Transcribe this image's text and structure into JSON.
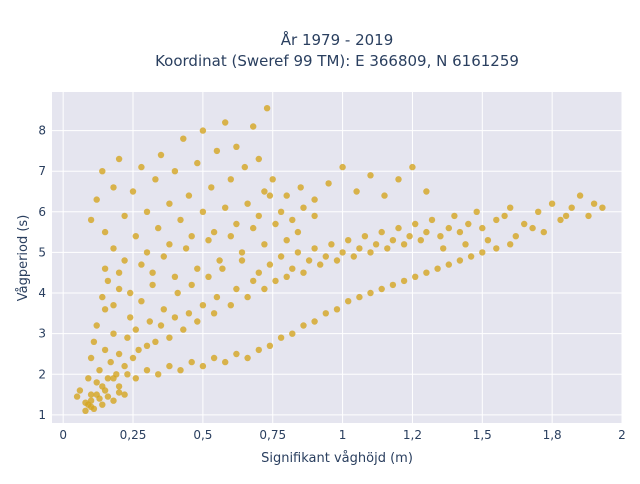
{
  "chart_data": {
    "type": "scatter",
    "title": [
      "År 1979 - 2019",
      "Koordinat (Sweref 99 TM): E 366809, N 6161259"
    ],
    "xlabel": "Signifikant våghöjd (m)",
    "ylabel": "Vågperiod (s)",
    "xlim": [
      -0.04,
      2.0
    ],
    "ylim": [
      0.8,
      8.95
    ],
    "x_ticks": [
      {
        "value": 0,
        "label": "0"
      },
      {
        "value": 0.25,
        "label": "0,25"
      },
      {
        "value": 0.5,
        "label": "0,5"
      },
      {
        "value": 0.75,
        "label": "0,75"
      },
      {
        "value": 1.0,
        "label": "1"
      },
      {
        "value": 1.25,
        "label": "1,2"
      },
      {
        "value": 1.5,
        "label": "1,5"
      },
      {
        "value": 1.75,
        "label": "1,8"
      },
      {
        "value": 2.0,
        "label": "2"
      }
    ],
    "y_ticks": [
      {
        "value": 1,
        "label": "1"
      },
      {
        "value": 2,
        "label": "2"
      },
      {
        "value": 3,
        "label": "3"
      },
      {
        "value": 4,
        "label": "4"
      },
      {
        "value": 5,
        "label": "5"
      },
      {
        "value": 6,
        "label": "6"
      },
      {
        "value": 7,
        "label": "7"
      },
      {
        "value": 8,
        "label": "8"
      }
    ],
    "grid": true,
    "colors": {
      "marker": "#d4a520",
      "plot_bg": "#e5e5ef",
      "grid": "#ffffff"
    },
    "series": [
      {
        "values": [
          [
            0.05,
            1.45
          ],
          [
            0.06,
            1.6
          ],
          [
            0.08,
            1.3
          ],
          [
            0.09,
            1.9
          ],
          [
            0.1,
            1.2
          ],
          [
            0.1,
            2.4
          ],
          [
            0.11,
            2.8
          ],
          [
            0.12,
            1.5
          ],
          [
            0.12,
            3.2
          ],
          [
            0.13,
            2.1
          ],
          [
            0.14,
            1.7
          ],
          [
            0.15,
            2.6
          ],
          [
            0.15,
            3.6
          ],
          [
            0.16,
            1.9
          ],
          [
            0.17,
            2.3
          ],
          [
            0.18,
            3.0
          ],
          [
            0.19,
            2.0
          ],
          [
            0.2,
            2.5
          ],
          [
            0.2,
            4.1
          ],
          [
            0.22,
            2.2
          ],
          [
            0.23,
            2.9
          ],
          [
            0.24,
            3.4
          ],
          [
            0.25,
            2.4
          ],
          [
            0.26,
            3.1
          ],
          [
            0.27,
            2.6
          ],
          [
            0.28,
            3.8
          ],
          [
            0.3,
            2.7
          ],
          [
            0.31,
            3.3
          ],
          [
            0.32,
            4.5
          ],
          [
            0.33,
            2.8
          ],
          [
            0.35,
            3.2
          ],
          [
            0.36,
            3.6
          ],
          [
            0.38,
            2.9
          ],
          [
            0.4,
            3.4
          ],
          [
            0.41,
            4.0
          ],
          [
            0.43,
            3.1
          ],
          [
            0.45,
            3.5
          ],
          [
            0.46,
            4.2
          ],
          [
            0.48,
            3.3
          ],
          [
            0.5,
            3.7
          ],
          [
            0.52,
            4.4
          ],
          [
            0.54,
            3.5
          ],
          [
            0.55,
            3.9
          ],
          [
            0.57,
            4.6
          ],
          [
            0.6,
            3.7
          ],
          [
            0.62,
            4.1
          ],
          [
            0.64,
            4.8
          ],
          [
            0.66,
            3.9
          ],
          [
            0.68,
            4.3
          ],
          [
            0.7,
            4.5
          ],
          [
            0.72,
            4.1
          ],
          [
            0.74,
            4.7
          ],
          [
            0.76,
            4.3
          ],
          [
            0.78,
            4.9
          ],
          [
            0.8,
            4.4
          ],
          [
            0.82,
            4.6
          ],
          [
            0.84,
            5.0
          ],
          [
            0.86,
            4.5
          ],
          [
            0.88,
            4.8
          ],
          [
            0.9,
            5.1
          ],
          [
            0.92,
            4.7
          ],
          [
            0.94,
            4.9
          ],
          [
            0.96,
            5.2
          ],
          [
            0.98,
            4.8
          ],
          [
            1.0,
            5.0
          ],
          [
            1.02,
            5.3
          ],
          [
            1.04,
            4.9
          ],
          [
            1.06,
            5.1
          ],
          [
            1.08,
            5.4
          ],
          [
            1.1,
            5.0
          ],
          [
            1.12,
            5.2
          ],
          [
            1.14,
            5.5
          ],
          [
            1.16,
            5.1
          ],
          [
            1.18,
            5.3
          ],
          [
            1.2,
            5.6
          ],
          [
            1.22,
            5.2
          ],
          [
            1.24,
            5.4
          ],
          [
            1.26,
            5.7
          ],
          [
            1.28,
            5.3
          ],
          [
            1.3,
            5.5
          ],
          [
            1.32,
            5.8
          ],
          [
            1.35,
            5.4
          ],
          [
            1.38,
            5.6
          ],
          [
            1.4,
            5.9
          ],
          [
            1.42,
            5.5
          ],
          [
            1.45,
            5.7
          ],
          [
            1.48,
            6.0
          ],
          [
            1.5,
            5.6
          ],
          [
            1.55,
            5.8
          ],
          [
            1.6,
            6.1
          ],
          [
            1.65,
            5.7
          ],
          [
            1.7,
            6.0
          ],
          [
            1.75,
            6.2
          ],
          [
            1.8,
            5.9
          ],
          [
            1.85,
            6.4
          ],
          [
            1.9,
            6.2
          ],
          [
            1.93,
            6.1
          ],
          [
            0.1,
            5.8
          ],
          [
            0.12,
            6.3
          ],
          [
            0.14,
            7.0
          ],
          [
            0.15,
            5.5
          ],
          [
            0.18,
            6.6
          ],
          [
            0.2,
            7.3
          ],
          [
            0.22,
            5.9
          ],
          [
            0.25,
            6.5
          ],
          [
            0.28,
            7.1
          ],
          [
            0.3,
            6.0
          ],
          [
            0.33,
            6.8
          ],
          [
            0.35,
            7.4
          ],
          [
            0.38,
            6.2
          ],
          [
            0.4,
            7.0
          ],
          [
            0.43,
            7.8
          ],
          [
            0.45,
            6.4
          ],
          [
            0.48,
            7.2
          ],
          [
            0.5,
            8.0
          ],
          [
            0.53,
            6.6
          ],
          [
            0.55,
            7.5
          ],
          [
            0.58,
            8.2
          ],
          [
            0.6,
            6.8
          ],
          [
            0.62,
            7.6
          ],
          [
            0.65,
            7.1
          ],
          [
            0.68,
            8.1
          ],
          [
            0.7,
            7.3
          ],
          [
            0.72,
            6.5
          ],
          [
            0.73,
            8.55
          ],
          [
            0.75,
            6.8
          ],
          [
            0.8,
            6.4
          ],
          [
            0.85,
            6.6
          ],
          [
            0.9,
            6.3
          ],
          [
            0.95,
            6.7
          ],
          [
            1.0,
            7.1
          ],
          [
            1.05,
            6.5
          ],
          [
            1.1,
            6.9
          ],
          [
            1.15,
            6.4
          ],
          [
            1.2,
            6.8
          ],
          [
            1.25,
            7.1
          ],
          [
            1.3,
            6.5
          ],
          [
            0.15,
            4.6
          ],
          [
            0.18,
            5.1
          ],
          [
            0.22,
            4.8
          ],
          [
            0.26,
            5.4
          ],
          [
            0.3,
            5.0
          ],
          [
            0.34,
            5.6
          ],
          [
            0.38,
            5.2
          ],
          [
            0.42,
            5.8
          ],
          [
            0.46,
            5.4
          ],
          [
            0.5,
            6.0
          ],
          [
            0.54,
            5.5
          ],
          [
            0.58,
            6.1
          ],
          [
            0.62,
            5.7
          ],
          [
            0.66,
            6.2
          ],
          [
            0.7,
            5.9
          ],
          [
            0.74,
            6.4
          ],
          [
            0.78,
            6.0
          ],
          [
            0.82,
            5.8
          ],
          [
            0.86,
            6.1
          ],
          [
            0.9,
            5.9
          ],
          [
            0.1,
            1.5
          ],
          [
            0.12,
            1.8
          ],
          [
            0.15,
            1.6
          ],
          [
            0.18,
            1.9
          ],
          [
            0.2,
            1.7
          ],
          [
            0.23,
            2.0
          ],
          [
            0.26,
            1.9
          ],
          [
            0.3,
            2.1
          ],
          [
            0.34,
            2.0
          ],
          [
            0.38,
            2.2
          ],
          [
            0.42,
            2.1
          ],
          [
            0.46,
            2.3
          ],
          [
            0.5,
            2.2
          ],
          [
            0.54,
            2.4
          ],
          [
            0.58,
            2.3
          ],
          [
            0.62,
            2.5
          ],
          [
            0.66,
            2.4
          ],
          [
            0.7,
            2.6
          ],
          [
            0.74,
            2.7
          ],
          [
            0.78,
            2.9
          ],
          [
            0.82,
            3.0
          ],
          [
            0.86,
            3.2
          ],
          [
            0.9,
            3.3
          ],
          [
            0.94,
            3.5
          ],
          [
            0.98,
            3.6
          ],
          [
            1.02,
            3.8
          ],
          [
            1.06,
            3.9
          ],
          [
            1.1,
            4.0
          ],
          [
            1.14,
            4.1
          ],
          [
            1.18,
            4.2
          ],
          [
            1.22,
            4.3
          ],
          [
            1.26,
            4.4
          ],
          [
            1.3,
            4.5
          ],
          [
            1.34,
            4.6
          ],
          [
            1.38,
            4.7
          ],
          [
            1.42,
            4.8
          ],
          [
            1.46,
            4.9
          ],
          [
            1.5,
            5.0
          ],
          [
            1.55,
            5.1
          ],
          [
            1.6,
            5.2
          ],
          [
            0.08,
            1.1
          ],
          [
            0.09,
            1.25
          ],
          [
            0.1,
            1.35
          ],
          [
            0.11,
            1.15
          ],
          [
            0.13,
            1.4
          ],
          [
            0.14,
            1.25
          ],
          [
            0.16,
            1.45
          ],
          [
            0.18,
            1.35
          ],
          [
            0.2,
            1.55
          ],
          [
            0.22,
            1.5
          ],
          [
            0.14,
            3.9
          ],
          [
            0.16,
            4.3
          ],
          [
            0.18,
            3.7
          ],
          [
            0.2,
            4.5
          ],
          [
            0.24,
            4.0
          ],
          [
            0.28,
            4.7
          ],
          [
            0.32,
            4.2
          ],
          [
            0.36,
            4.9
          ],
          [
            0.4,
            4.4
          ],
          [
            0.44,
            5.1
          ],
          [
            0.48,
            4.6
          ],
          [
            0.52,
            5.3
          ],
          [
            0.56,
            4.8
          ],
          [
            0.6,
            5.4
          ],
          [
            0.64,
            5.0
          ],
          [
            0.68,
            5.6
          ],
          [
            0.72,
            5.2
          ],
          [
            0.76,
            5.7
          ],
          [
            0.8,
            5.3
          ],
          [
            0.84,
            5.5
          ],
          [
            1.62,
            5.4
          ],
          [
            1.68,
            5.6
          ],
          [
            1.72,
            5.5
          ],
          [
            1.78,
            5.8
          ],
          [
            1.82,
            6.1
          ],
          [
            1.88,
            5.9
          ],
          [
            1.58,
            5.9
          ],
          [
            1.52,
            5.3
          ],
          [
            1.44,
            5.2
          ],
          [
            1.36,
            5.1
          ]
        ]
      }
    ]
  }
}
